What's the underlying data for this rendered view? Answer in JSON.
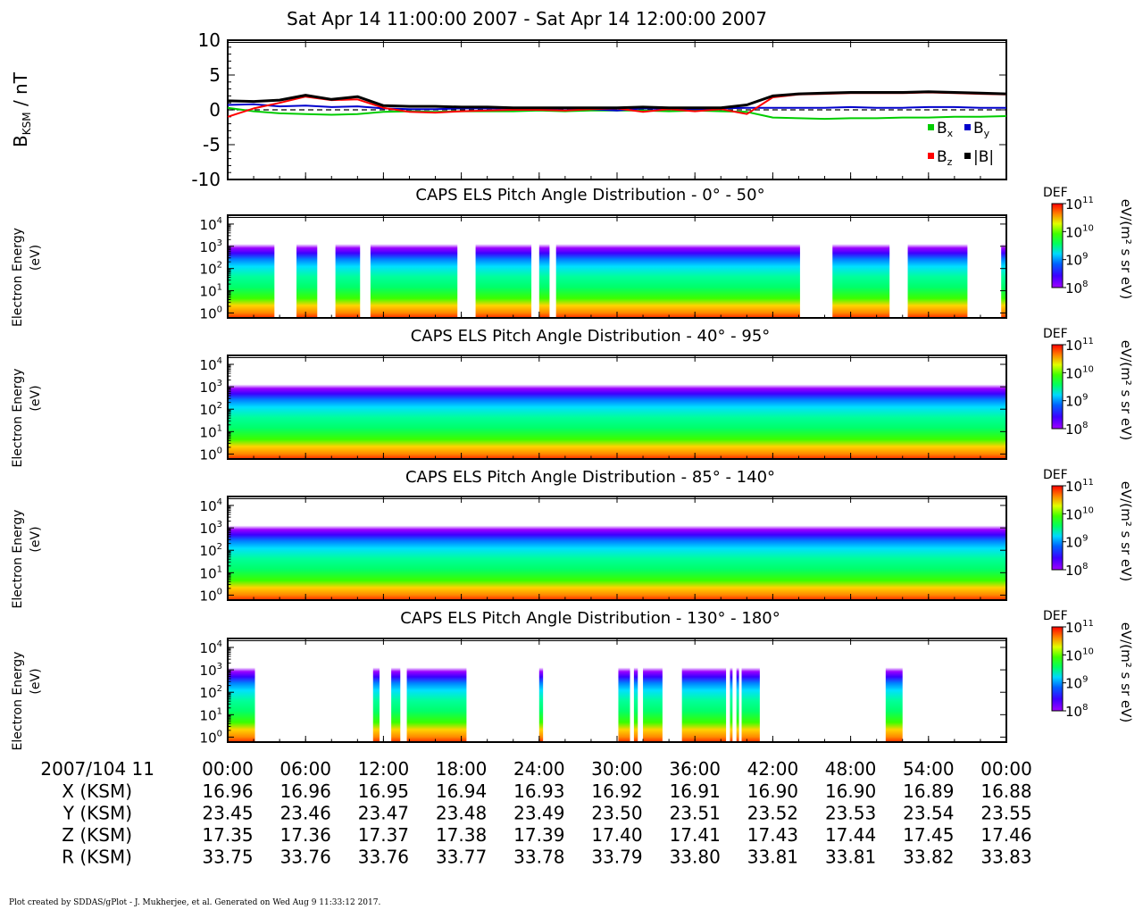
{
  "title": "Sat Apr 14 11:00:00 2007 - Sat Apr 14 12:00:00 2007",
  "footer": "Plot created by SDDAS/gPlot - J. Mukherjee, et al.  Generated on Wed Aug 9 11:33:12 2017.",
  "mag_panel": {
    "ylabel_main": "B",
    "ylabel_sub": "KSM",
    "ylabel_unit": " / nT",
    "legend": {
      "bx": {
        "label": "B",
        "sub": "x",
        "color": "#00cc00"
      },
      "by": {
        "label": "B",
        "sub": "y",
        "color": "#0000cc"
      },
      "bz": {
        "label": "B",
        "sub": "z",
        "color": "#ff0000"
      },
      "bmag": {
        "label": "|B|",
        "color": "#000000"
      }
    }
  },
  "spectrogram_panels": [
    {
      "title": "CAPS ELS Pitch Angle Distribution - 0° - 50°",
      "ylabel_line1": "Electron Energy",
      "ylabel_line2": "(eV)",
      "cb_title": "DEF",
      "cb_unit": "eV/(m² s sr eV)"
    },
    {
      "title": "CAPS ELS Pitch Angle Distribution - 40° - 95°",
      "ylabel_line1": "Electron Energy",
      "ylabel_line2": "(eV)",
      "cb_title": "DEF",
      "cb_unit": "eV/(m² s sr eV)"
    },
    {
      "title": "CAPS ELS Pitch Angle Distribution - 85° - 140°",
      "ylabel_line1": "Electron Energy",
      "ylabel_line2": "(eV)",
      "cb_title": "DEF",
      "cb_unit": "eV/(m² s sr eV)"
    },
    {
      "title": "CAPS ELS Pitch Angle Distribution - 130° - 180°",
      "ylabel_line1": "Electron Energy",
      "ylabel_line2": "(eV)",
      "cb_title": "DEF",
      "cb_unit": "eV/(m² s sr eV)"
    }
  ],
  "ephemeris": {
    "header": "2007/104 11",
    "times": [
      "00:00",
      "06:00",
      "12:00",
      "18:00",
      "24:00",
      "30:00",
      "36:00",
      "42:00",
      "48:00",
      "54:00",
      "00:00"
    ],
    "rows": [
      {
        "label": "X (KSM)",
        "values": [
          "16.96",
          "16.96",
          "16.95",
          "16.94",
          "16.93",
          "16.92",
          "16.91",
          "16.90",
          "16.90",
          "16.89",
          "16.88"
        ]
      },
      {
        "label": "Y (KSM)",
        "values": [
          "23.45",
          "23.46",
          "23.47",
          "23.48",
          "23.49",
          "23.50",
          "23.51",
          "23.52",
          "23.53",
          "23.54",
          "23.55"
        ]
      },
      {
        "label": "Z (KSM)",
        "values": [
          "17.35",
          "17.36",
          "17.37",
          "17.38",
          "17.39",
          "17.40",
          "17.41",
          "17.43",
          "17.44",
          "17.45",
          "17.46"
        ]
      },
      {
        "label": "R (KSM)",
        "values": [
          "33.75",
          "33.76",
          "33.76",
          "33.77",
          "33.78",
          "33.79",
          "33.80",
          "33.81",
          "33.81",
          "33.82",
          "33.83"
        ]
      }
    ]
  },
  "chart_data": [
    {
      "type": "line",
      "x_unit": "minutes after 11:00",
      "xlim": [
        0,
        60
      ],
      "ylim": [
        -10,
        10
      ],
      "yticks": [
        -10,
        -5,
        0,
        5,
        10
      ],
      "series": [
        {
          "name": "Bx",
          "color": "#00cc00",
          "x": [
            0,
            2,
            4,
            6,
            8,
            10,
            12,
            14,
            16,
            18,
            20,
            22,
            24,
            26,
            28,
            30,
            32,
            34,
            36,
            38,
            40,
            42,
            44,
            46,
            48,
            50,
            52,
            54,
            56,
            58,
            60
          ],
          "y": [
            0.3,
            -0.2,
            -0.5,
            -0.6,
            -0.7,
            -0.6,
            -0.3,
            -0.2,
            -0.3,
            -0.2,
            -0.2,
            -0.2,
            -0.1,
            -0.2,
            -0.1,
            -0.1,
            -0.1,
            -0.2,
            -0.1,
            -0.2,
            -0.3,
            -1.1,
            -1.2,
            -1.3,
            -1.2,
            -1.2,
            -1.1,
            -1.1,
            -1.0,
            -1.0,
            -0.9
          ]
        },
        {
          "name": "By",
          "color": "#0000cc",
          "x": [
            0,
            2,
            4,
            6,
            8,
            10,
            12,
            14,
            16,
            18,
            20,
            22,
            24,
            26,
            28,
            30,
            32,
            34,
            36,
            38,
            40,
            42,
            44,
            46,
            48,
            50,
            52,
            54,
            56,
            58,
            60
          ],
          "y": [
            0.7,
            0.8,
            0.5,
            0.6,
            0.4,
            0.5,
            0.2,
            0.1,
            0.1,
            0.2,
            0.2,
            0.2,
            0.1,
            0.2,
            0.1,
            -0.1,
            0.2,
            0.1,
            0.1,
            0.2,
            0.3,
            0.3,
            0.3,
            0.3,
            0.4,
            0.3,
            0.3,
            0.4,
            0.4,
            0.3,
            0.3
          ]
        },
        {
          "name": "Bz",
          "color": "#ff0000",
          "x": [
            0,
            2,
            4,
            6,
            8,
            10,
            12,
            14,
            16,
            18,
            20,
            22,
            24,
            26,
            28,
            30,
            32,
            34,
            36,
            38,
            40,
            42,
            44,
            46,
            48,
            50,
            52,
            54,
            56,
            58,
            60
          ],
          "y": [
            -1.0,
            0.2,
            1.0,
            1.9,
            1.4,
            1.5,
            0.3,
            -0.3,
            -0.4,
            -0.2,
            -0.1,
            0.0,
            0.0,
            -0.1,
            0.1,
            0.2,
            -0.3,
            0.1,
            -0.2,
            0.1,
            -0.6,
            1.8,
            2.2,
            2.3,
            2.4,
            2.4,
            2.4,
            2.5,
            2.4,
            2.3,
            2.2
          ]
        },
        {
          "name": "|B|",
          "color": "#000000",
          "x": [
            0,
            2,
            4,
            6,
            8,
            10,
            12,
            14,
            16,
            18,
            20,
            22,
            24,
            26,
            28,
            30,
            32,
            34,
            36,
            38,
            40,
            42,
            44,
            46,
            48,
            50,
            52,
            54,
            56,
            58,
            60
          ],
          "y": [
            1.3,
            1.2,
            1.4,
            2.1,
            1.5,
            1.9,
            0.6,
            0.5,
            0.5,
            0.4,
            0.4,
            0.3,
            0.3,
            0.3,
            0.3,
            0.3,
            0.4,
            0.3,
            0.3,
            0.3,
            0.7,
            2.0,
            2.3,
            2.4,
            2.5,
            2.5,
            2.5,
            2.6,
            2.5,
            2.4,
            2.3
          ]
        }
      ]
    },
    {
      "type": "heatmap",
      "title": "CAPS ELS Pitch Angle Distribution - 0° - 50°",
      "ylabel": "Electron Energy (eV)",
      "yscale": "log",
      "ylim": [
        0.6,
        25000
      ],
      "yticks": [
        "10^0",
        "10^1",
        "10^2",
        "10^3",
        "10^4"
      ],
      "colorbar": {
        "label": "DEF",
        "unit": "eV/(m² s sr eV)",
        "range": [
          100000000.0,
          100000000000.0
        ],
        "ticks": [
          "10^8",
          "10^9",
          "10^10",
          "10^11"
        ]
      },
      "data_gaps_min": [
        [
          3.6,
          5.3
        ],
        [
          6.9,
          8.3
        ],
        [
          10.2,
          11.0
        ],
        [
          17.7,
          19.1
        ],
        [
          23.4,
          24.0
        ],
        [
          24.8,
          25.3
        ],
        [
          44.1,
          46.6
        ],
        [
          51.0,
          52.4
        ],
        [
          57.0,
          59.6
        ]
      ]
    },
    {
      "type": "heatmap",
      "title": "CAPS ELS Pitch Angle Distribution - 40° - 95°",
      "ylabel": "Electron Energy (eV)",
      "yscale": "log",
      "ylim": [
        0.6,
        25000
      ],
      "yticks": [
        "10^0",
        "10^1",
        "10^2",
        "10^3",
        "10^4"
      ],
      "colorbar": {
        "label": "DEF",
        "unit": "eV/(m² s sr eV)",
        "range": [
          100000000.0,
          100000000000.0
        ],
        "ticks": [
          "10^8",
          "10^9",
          "10^10",
          "10^11"
        ]
      },
      "data_gaps_min": []
    },
    {
      "type": "heatmap",
      "title": "CAPS ELS Pitch Angle Distribution - 85° - 140°",
      "ylabel": "Electron Energy (eV)",
      "yscale": "log",
      "ylim": [
        0.6,
        25000
      ],
      "yticks": [
        "10^0",
        "10^1",
        "10^2",
        "10^3",
        "10^4"
      ],
      "colorbar": {
        "label": "DEF",
        "unit": "eV/(m² s sr eV)",
        "range": [
          100000000.0,
          100000000000.0
        ],
        "ticks": [
          "10^8",
          "10^9",
          "10^10",
          "10^11"
        ]
      },
      "data_gaps_min": []
    },
    {
      "type": "heatmap",
      "title": "CAPS ELS Pitch Angle Distribution - 130° - 180°",
      "ylabel": "Electron Energy (eV)",
      "yscale": "log",
      "ylim": [
        0.6,
        25000
      ],
      "yticks": [
        "10^0",
        "10^1",
        "10^2",
        "10^3",
        "10^4"
      ],
      "colorbar": {
        "label": "DEF",
        "unit": "eV/(m² s sr eV)",
        "range": [
          100000000.0,
          100000000000.0
        ],
        "ticks": [
          "10^8",
          "10^9",
          "10^10",
          "10^11"
        ]
      },
      "data_segments_min": [
        [
          0,
          2.1
        ],
        [
          11.2,
          11.7
        ],
        [
          12.6,
          13.3
        ],
        [
          13.8,
          18.4
        ],
        [
          24.0,
          24.3
        ],
        [
          30.1,
          31.0
        ],
        [
          31.3,
          31.6
        ],
        [
          32.0,
          33.5
        ],
        [
          35.0,
          38.4
        ],
        [
          38.7,
          38.9
        ],
        [
          39.2,
          39.4
        ],
        [
          39.6,
          41.0
        ],
        [
          50.7,
          52.0
        ]
      ]
    }
  ]
}
